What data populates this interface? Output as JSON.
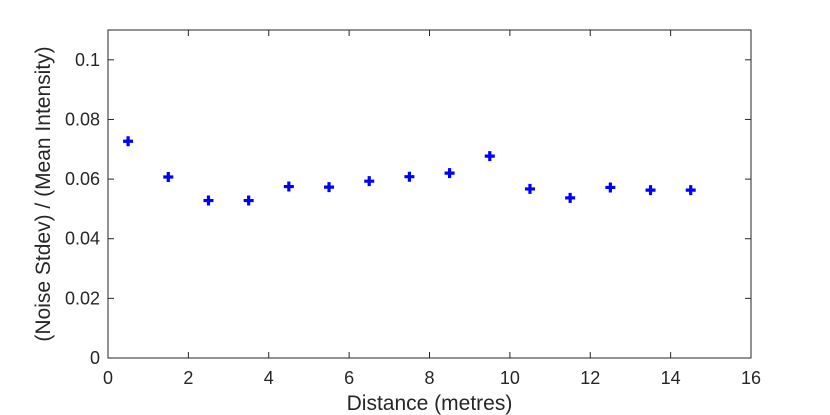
{
  "chart_data": {
    "type": "scatter",
    "title": "",
    "xlabel": "Distance (metres)",
    "ylabel": "(Noise Stdev) / (Mean Intensity)",
    "xlim": [
      0,
      16
    ],
    "ylim": [
      0,
      0.11
    ],
    "xticks": [
      0,
      2,
      4,
      6,
      8,
      10,
      12,
      14,
      16
    ],
    "xtick_labels": [
      "0",
      "2",
      "4",
      "6",
      "8",
      "10",
      "12",
      "14",
      "16"
    ],
    "yticks": [
      0,
      0.02,
      0.04,
      0.06,
      0.08,
      0.1
    ],
    "ytick_labels": [
      "0",
      "0.02",
      "0.04",
      "0.06",
      "0.08",
      "0.1"
    ],
    "grid": false,
    "marker": "plus",
    "color": "#0000ff",
    "series": [
      {
        "x": [
          0.5,
          1.5,
          2.5,
          3.5,
          4.5,
          5.5,
          6.5,
          7.5,
          8.5,
          9.5,
          10.5,
          11.5,
          12.5,
          13.5,
          14.5
        ],
        "y": [
          0.0727,
          0.0607,
          0.0528,
          0.0528,
          0.0575,
          0.0573,
          0.0593,
          0.0608,
          0.062,
          0.0677,
          0.0567,
          0.0537,
          0.0572,
          0.0563,
          0.0563
        ]
      }
    ]
  }
}
